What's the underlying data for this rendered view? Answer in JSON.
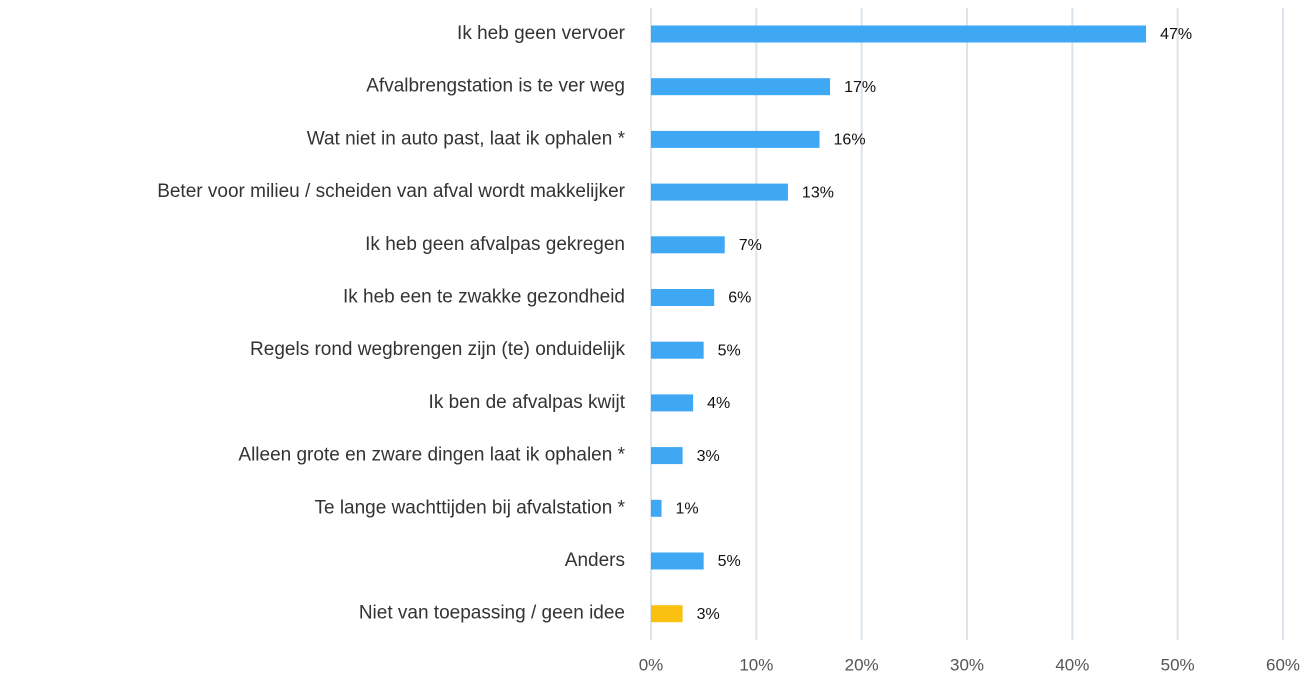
{
  "chart_data": {
    "type": "barh",
    "categories": [
      "Ik heb geen vervoer",
      "Afvalbrengstation is te ver weg",
      "Wat niet in auto past, laat ik ophalen *",
      "Beter voor milieu / scheiden van afval wordt makkelijker",
      "Ik heb geen afvalpas gekregen",
      "Ik heb een te zwakke gezondheid",
      "Regels rond wegbrengen zijn (te) onduidelijk",
      "Ik ben de afvalpas kwijt",
      "Alleen grote en zware dingen laat ik ophalen *",
      "Te lange wachttijden bij afvalstation *",
      "Anders",
      "Niet van toepassing / geen idee"
    ],
    "values": [
      47,
      17,
      16,
      13,
      7,
      6,
      5,
      4,
      3,
      1,
      5,
      3
    ],
    "value_labels": [
      "47%",
      "17%",
      "16%",
      "13%",
      "7%",
      "6%",
      "5%",
      "4%",
      "3%",
      "1%",
      "5%",
      "3%"
    ],
    "colors": [
      "#3ea8f5",
      "#3ea8f5",
      "#3ea8f5",
      "#3ea8f5",
      "#3ea8f5",
      "#3ea8f5",
      "#3ea8f5",
      "#3ea8f5",
      "#3ea8f5",
      "#3ea8f5",
      "#3ea8f5",
      "#f9c00f"
    ],
    "xlim": [
      0,
      60
    ],
    "xticks": [
      {
        "value": 0,
        "label": "0%"
      },
      {
        "value": 10,
        "label": "10%"
      },
      {
        "value": 20,
        "label": "20%"
      },
      {
        "value": 30,
        "label": "30%"
      },
      {
        "value": 40,
        "label": "40%"
      },
      {
        "value": 50,
        "label": "50%"
      },
      {
        "value": 60,
        "label": "60%"
      }
    ],
    "grid": true
  }
}
